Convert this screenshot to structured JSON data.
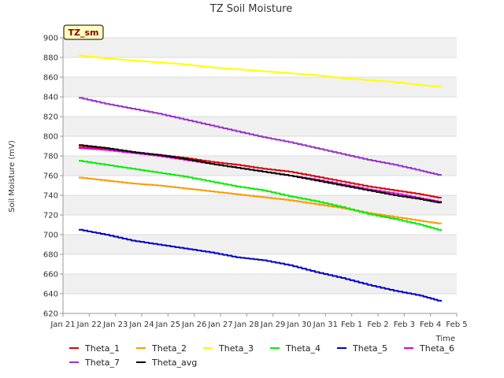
{
  "chart_data": {
    "type": "line",
    "title": "TZ Soil Moisture",
    "xlabel": "Time",
    "ylabel": "Soil Moisture (mV)",
    "site_label": "TZ_sm",
    "xlim": [
      0,
      15
    ],
    "ylim": [
      620,
      900
    ],
    "y_ticks": [
      620,
      640,
      660,
      680,
      700,
      720,
      740,
      760,
      780,
      800,
      820,
      840,
      860,
      880,
      900
    ],
    "x_ticks": [
      {
        "pos": 0,
        "label": "Jan 21"
      },
      {
        "pos": 1,
        "label": "Jan 22"
      },
      {
        "pos": 2,
        "label": "Jan 23"
      },
      {
        "pos": 3,
        "label": "Jan 24"
      },
      {
        "pos": 4,
        "label": "Jan 25"
      },
      {
        "pos": 5,
        "label": "Jan 26"
      },
      {
        "pos": 6,
        "label": "Jan 27"
      },
      {
        "pos": 7,
        "label": "Jan 28"
      },
      {
        "pos": 8,
        "label": "Jan 29"
      },
      {
        "pos": 9,
        "label": "Jan 30"
      },
      {
        "pos": 10,
        "label": "Jan 31"
      },
      {
        "pos": 11,
        "label": "Feb 1"
      },
      {
        "pos": 12,
        "label": "Feb 2"
      },
      {
        "pos": 13,
        "label": "Feb 3"
      },
      {
        "pos": 14,
        "label": "Feb 4"
      },
      {
        "pos": 15,
        "label": "Feb 5"
      }
    ],
    "x": [
      0.6,
      1.6,
      2.6,
      3.6,
      4.6,
      5.6,
      6.6,
      7.6,
      8.6,
      9.6,
      10.6,
      11.6,
      12.6,
      13.6,
      14.4
    ],
    "series": [
      {
        "name": "Theta_1",
        "color": "#dd0000",
        "values": [
          789,
          787,
          783,
          781,
          778,
          774,
          771,
          767,
          764,
          759,
          754,
          749,
          745,
          741,
          737
        ]
      },
      {
        "name": "Theta_2",
        "color": "#ff9900",
        "values": [
          758,
          755,
          752,
          750,
          747,
          744,
          741,
          738,
          735,
          731,
          727,
          722,
          718,
          714,
          711
        ]
      },
      {
        "name": "Theta_3",
        "color": "#ffff00",
        "values": [
          882,
          879,
          877,
          875,
          873,
          870,
          868,
          866,
          864,
          862,
          859,
          857,
          855,
          852,
          850
        ]
      },
      {
        "name": "Theta_4",
        "color": "#00ee00",
        "values": [
          775,
          771,
          767,
          763,
          759,
          754,
          749,
          745,
          739,
          734,
          728,
          721,
          716,
          710,
          704
        ]
      },
      {
        "name": "Theta_5",
        "color": "#0000cc",
        "values": [
          705,
          700,
          694,
          690,
          686,
          682,
          677,
          674,
          669,
          662,
          656,
          649,
          643,
          638,
          632
        ]
      },
      {
        "name": "Theta_6",
        "color": "#dd00dd",
        "values": [
          788,
          786,
          783,
          780,
          776,
          772,
          768,
          764,
          760,
          756,
          751,
          746,
          742,
          737,
          733
        ]
      },
      {
        "name": "Theta_7",
        "color": "#9933cc",
        "values": [
          839,
          833,
          828,
          823,
          817,
          811,
          805,
          799,
          794,
          788,
          782,
          776,
          771,
          765,
          760
        ]
      },
      {
        "name": "Theta_avg",
        "color": "#000000",
        "values": [
          791,
          788,
          784,
          781,
          777,
          772,
          768,
          764,
          760,
          755,
          750,
          745,
          740,
          736,
          732
        ]
      }
    ],
    "legend_position": "bottom"
  }
}
